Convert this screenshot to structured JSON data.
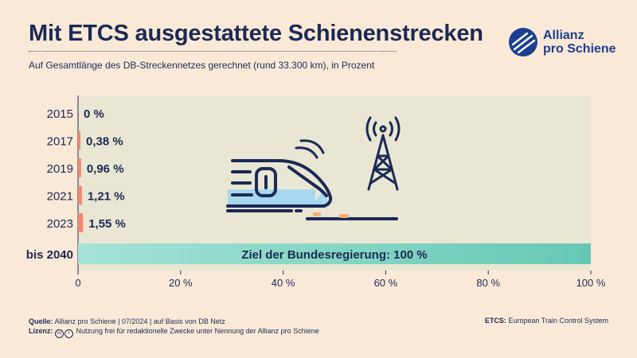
{
  "header": {
    "title": "Mit ETCS ausgestattete Schienenstrecken",
    "subtitle": "Auf Gesamtlänge des DB-Streckennetzes gerechnet (rund 33.300 km), in Prozent"
  },
  "logo": {
    "line1": "Allianz",
    "line2": "pro Schiene",
    "icon": "allianz-pro-schiene-logo-icon"
  },
  "colors": {
    "background": "#fbe9d8",
    "plot_area": "#e9e6d4",
    "bar": "#f5866f",
    "navy": "#1b2a55",
    "target_bar_start": "#a5e3d6",
    "target_bar_end": "#66c8b4",
    "train_fill": "#a8d8f0",
    "track_accent": "#f3b072"
  },
  "chart_data": {
    "type": "bar",
    "orientation": "horizontal",
    "categories": [
      "2015",
      "2017",
      "2019",
      "2021",
      "2023"
    ],
    "values": [
      0,
      0.38,
      0.96,
      1.21,
      1.55
    ],
    "value_labels": [
      "0 %",
      "0,38 %",
      "0,96 %",
      "1,21 %",
      "1,55 %"
    ],
    "target": {
      "category": "bis 2040",
      "value": 100,
      "label": "Ziel der Bundesregierung: 100 %"
    },
    "xlim": [
      0,
      100
    ],
    "x_ticks": [
      0,
      20,
      40,
      60,
      80,
      100
    ],
    "x_tick_labels": [
      "0",
      "20 %",
      "40 %",
      "60 %",
      "80 %",
      "100 %"
    ],
    "illustration": [
      "train-icon",
      "signal-tower-icon"
    ]
  },
  "footer": {
    "source_label": "Quelle:",
    "source_text": "Allianz pro Schiene | 07/2024 | auf Basis von DB Netz",
    "license_label": "Lizenz:",
    "license_text": "Nutzung frei für redaktionelle Zwecke unter Nennung der Allianz pro Schiene",
    "abbr_label": "ETCS:",
    "abbr_text": "European Train Control System"
  }
}
